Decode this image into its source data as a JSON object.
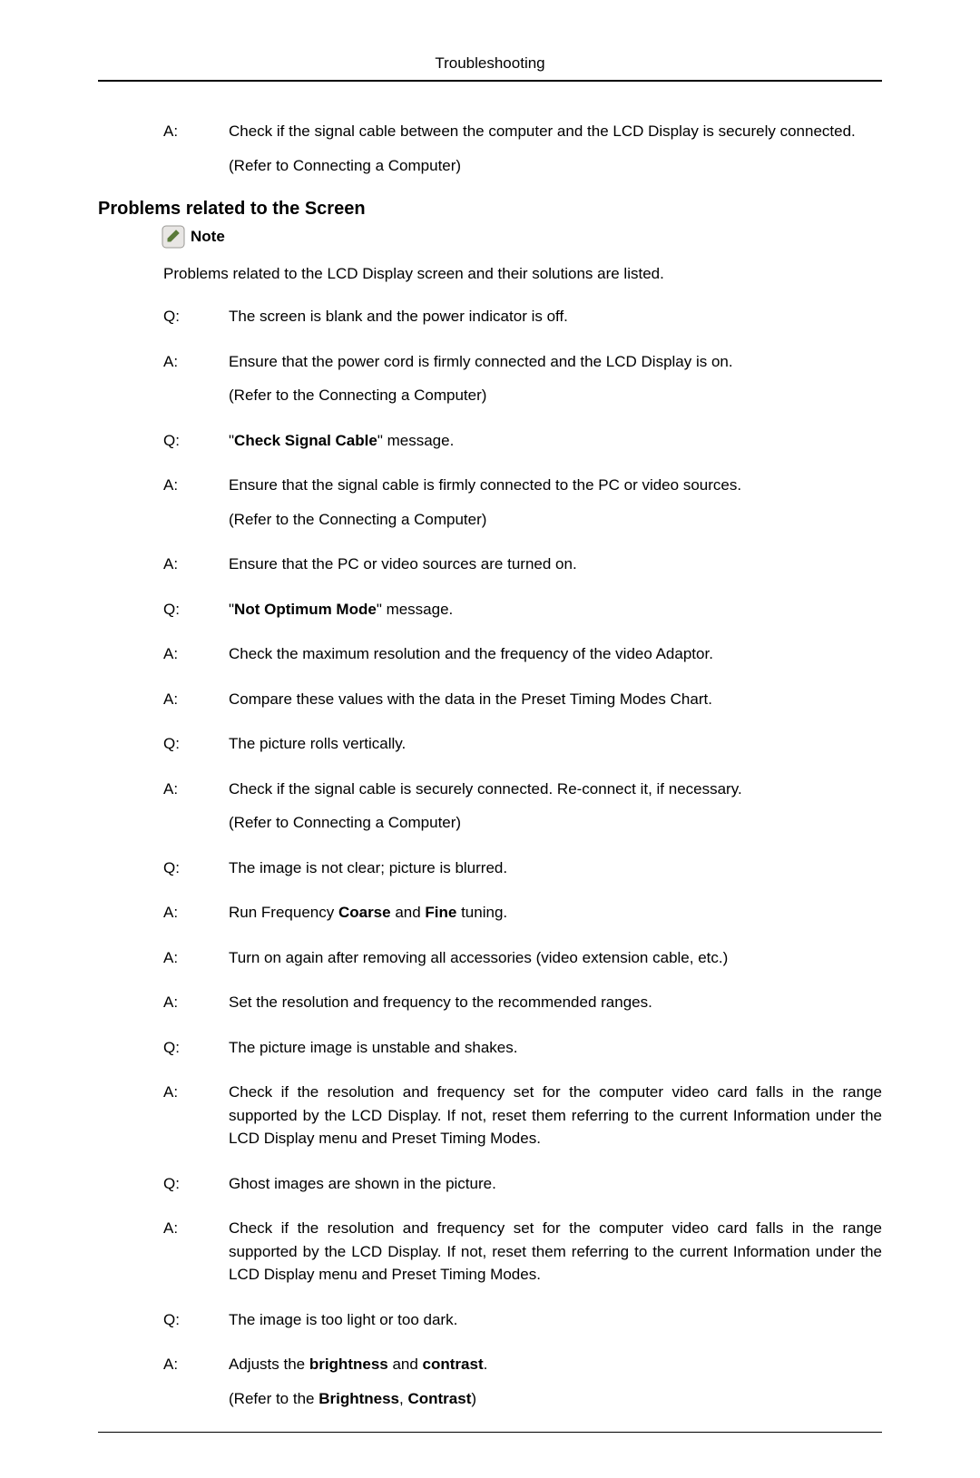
{
  "header": "Troubleshooting",
  "top_qa": [
    {
      "label": "A:",
      "text": "Check if the signal cable between the computer and the LCD Display is securely connected.",
      "sub": "(Refer to Connecting a Computer)"
    }
  ],
  "section": {
    "heading": "Problems related to the Screen",
    "note_label": "Note",
    "intro": "Problems related to the LCD Display screen and their solutions are listed.",
    "items": [
      {
        "label": "Q:",
        "text": "The screen is blank and the power indicator is off."
      },
      {
        "label": "A:",
        "text": "Ensure that the power cord is firmly connected and the LCD Display is on.",
        "sub": "(Refer to the Connecting a Computer)"
      },
      {
        "label": "Q:",
        "html": "\"<b>Check Signal Cable</b>\" message."
      },
      {
        "label": "A:",
        "text": "Ensure that the signal cable is firmly connected to the PC or video sources.",
        "sub": "(Refer to the Connecting a Computer)"
      },
      {
        "label": "A:",
        "text": "Ensure that the PC or video sources are turned on."
      },
      {
        "label": "Q:",
        "html": "\"<b>Not Optimum Mode</b>\" message."
      },
      {
        "label": "A:",
        "text": "Check the maximum resolution and the frequency of the video Adaptor."
      },
      {
        "label": "A:",
        "text": "Compare these values with the data in the Preset Timing Modes Chart."
      },
      {
        "label": "Q:",
        "text": "The picture rolls vertically."
      },
      {
        "label": "A:",
        "text": "Check if the signal cable is securely connected. Re-connect it, if necessary.",
        "sub": "(Refer to Connecting a Computer)"
      },
      {
        "label": "Q:",
        "text": "The image is not clear; picture is blurred."
      },
      {
        "label": "A:",
        "html": "Run Frequency <b>Coarse</b> and <b>Fine</b> tuning."
      },
      {
        "label": "A:",
        "text": "Turn on again after removing all accessories (video extension cable, etc.)"
      },
      {
        "label": "A:",
        "text": "Set the resolution and frequency to the recommended ranges."
      },
      {
        "label": "Q:",
        "text": "The picture image is unstable and shakes."
      },
      {
        "label": "A:",
        "text": "Check if the resolution and frequency set for the computer video card falls in the range supported by the LCD Display. If not, reset them referring to the current Information under the LCD Display menu and Preset Timing Modes."
      },
      {
        "label": "Q:",
        "text": "Ghost images are shown in the picture."
      },
      {
        "label": "A:",
        "text": "Check if the resolution and frequency set for the computer video card falls in the range supported by the LCD Display. If not, reset them referring to the current Information under the LCD Display menu and Preset Timing Modes."
      },
      {
        "label": "Q:",
        "text": "The image is too light or too dark."
      },
      {
        "label": "A:",
        "html": "Adjusts the <b>brightness</b> and <b>contrast</b>.",
        "sub_html": "(Refer to the <b>Brightness</b>, <b>Contrast</b>)"
      }
    ]
  },
  "note_icon": {
    "bg": "#e8e6e4",
    "border": "#9a9894",
    "pencil": "#5a7a3a"
  }
}
